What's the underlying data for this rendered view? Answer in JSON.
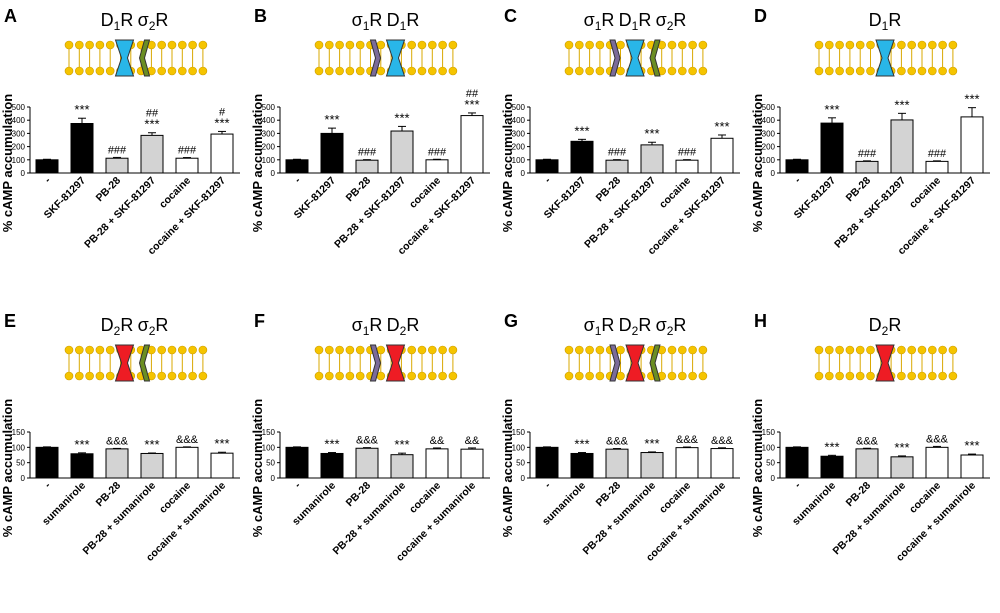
{
  "figure": {
    "ylabel": "% cAMP accumulation",
    "colors": {
      "black": "#000000",
      "grey": "#d3d3d3",
      "white": "#ffffff",
      "D1": "#29b6e8",
      "D2": "#ee1c24",
      "s1": "#7b6b9a",
      "s2": "#6b8e23",
      "lipid": "#f5c400"
    }
  },
  "chart_data": [
    {
      "panel": "A",
      "type": "bar",
      "receptors": [
        "D1R",
        "σ2R"
      ],
      "ylim": [
        0,
        500
      ],
      "yticks": [
        0,
        100,
        200,
        300,
        400,
        500
      ],
      "categories": [
        "-",
        "SKF-81297",
        "PB-28",
        "PB-28 + SKF-81297",
        "cocaine",
        "cocaine + SKF-81297"
      ],
      "values": [
        100,
        375,
        112,
        285,
        112,
        295
      ],
      "errors": [
        4,
        40,
        6,
        20,
        5,
        20
      ],
      "colors": [
        "black",
        "black",
        "grey",
        "grey",
        "white",
        "white"
      ],
      "annotations": [
        "",
        "***",
        "###",
        "##\n***",
        "###",
        "#\n***"
      ]
    },
    {
      "panel": "B",
      "type": "bar",
      "receptors": [
        "σ1R",
        "D1R"
      ],
      "ylim": [
        0,
        500
      ],
      "yticks": [
        0,
        100,
        200,
        300,
        400,
        500
      ],
      "categories": [
        "-",
        "SKF-81297",
        "PB-28",
        "PB-28 + SKF-81297",
        "cocaine",
        "cocaine + SKF-81297"
      ],
      "values": [
        100,
        300,
        97,
        318,
        100,
        435
      ],
      "errors": [
        4,
        40,
        4,
        35,
        4,
        20
      ],
      "colors": [
        "black",
        "black",
        "grey",
        "grey",
        "white",
        "white"
      ],
      "annotations": [
        "",
        "***",
        "###",
        "***",
        "###",
        "##\n***"
      ]
    },
    {
      "panel": "C",
      "type": "bar",
      "receptors": [
        "σ1R",
        "D1R",
        "σ2R"
      ],
      "ylim": [
        0,
        500
      ],
      "yticks": [
        0,
        100,
        200,
        300,
        400,
        500
      ],
      "categories": [
        "-",
        "SKF-81297",
        "PB-28",
        "PB-28 + SKF-81297",
        "cocaine",
        "cocaine + SKF-81297"
      ],
      "values": [
        100,
        240,
        97,
        213,
        97,
        263
      ],
      "errors": [
        4,
        15,
        4,
        20,
        4,
        25
      ],
      "colors": [
        "black",
        "black",
        "grey",
        "grey",
        "white",
        "white"
      ],
      "annotations": [
        "",
        "***",
        "###",
        "***",
        "###",
        "***"
      ]
    },
    {
      "panel": "D",
      "type": "bar",
      "receptors": [
        "D1R"
      ],
      "ylim": [
        0,
        500
      ],
      "yticks": [
        0,
        100,
        200,
        300,
        400,
        500
      ],
      "categories": [
        "-",
        "SKF-81297",
        "PB-28",
        "PB-28 + SKF-81297",
        "cocaine",
        "cocaine + SKF-81297"
      ],
      "values": [
        100,
        378,
        88,
        402,
        88,
        425
      ],
      "errors": [
        4,
        40,
        4,
        50,
        4,
        70
      ],
      "colors": [
        "black",
        "black",
        "grey",
        "grey",
        "white",
        "white"
      ],
      "annotations": [
        "",
        "***",
        "###",
        "***",
        "###",
        "***"
      ]
    },
    {
      "panel": "E",
      "type": "bar",
      "receptors": [
        "D2R",
        "σ2R"
      ],
      "ylim": [
        0,
        150
      ],
      "yticks": [
        0,
        50,
        100,
        150
      ],
      "categories": [
        "-",
        "sumanirole",
        "PB-28",
        "PB-28 + sumanirole",
        "cocaine",
        "cocaine + sumanirole"
      ],
      "values": [
        100,
        79,
        95,
        80,
        100,
        81
      ],
      "errors": [
        1.5,
        3,
        1.5,
        1.5,
        1.5,
        3
      ],
      "colors": [
        "black",
        "black",
        "grey",
        "grey",
        "white",
        "white"
      ],
      "annotations": [
        "",
        "***",
        "&&&",
        "***",
        "&&&",
        "***"
      ]
    },
    {
      "panel": "F",
      "type": "bar",
      "receptors": [
        "σ1R",
        "D2R"
      ],
      "ylim": [
        0,
        150
      ],
      "yticks": [
        0,
        50,
        100,
        150
      ],
      "categories": [
        "-",
        "sumanirole",
        "PB-28",
        "PB-28 + sumanirole",
        "cocaine",
        "cocaine + sumanirole"
      ],
      "values": [
        100,
        80,
        97,
        76,
        95,
        94
      ],
      "errors": [
        1.5,
        3,
        2,
        5,
        3,
        4
      ],
      "colors": [
        "black",
        "black",
        "grey",
        "grey",
        "white",
        "white"
      ],
      "annotations": [
        "",
        "***",
        "&&&",
        "***",
        "&&",
        "&&"
      ]
    },
    {
      "panel": "G",
      "type": "bar",
      "receptors": [
        "σ1R",
        "D2R",
        "σ2R"
      ],
      "ylim": [
        0,
        150
      ],
      "yticks": [
        0,
        50,
        100,
        150
      ],
      "categories": [
        "-",
        "sumanirole",
        "PB-28",
        "PB-28 + sumanirole",
        "cocaine",
        "cocaine + sumanirole"
      ],
      "values": [
        100,
        80,
        94,
        83,
        99,
        96
      ],
      "errors": [
        1.5,
        3,
        2,
        2,
        2,
        2.5
      ],
      "colors": [
        "black",
        "black",
        "grey",
        "grey",
        "white",
        "white"
      ],
      "annotations": [
        "",
        "***",
        "&&&",
        "***",
        "&&&",
        "&&&"
      ]
    },
    {
      "panel": "H",
      "type": "bar",
      "receptors": [
        "D2R"
      ],
      "ylim": [
        0,
        150
      ],
      "yticks": [
        0,
        50,
        100,
        150
      ],
      "categories": [
        "-",
        "sumanirole",
        "PB-28",
        "PB-28 + sumanirole",
        "cocaine",
        "cocaine + sumanirole"
      ],
      "values": [
        100,
        71,
        95,
        69,
        100,
        75
      ],
      "errors": [
        1.5,
        3,
        2,
        3,
        3,
        3
      ],
      "colors": [
        "black",
        "black",
        "grey",
        "grey",
        "white",
        "white"
      ],
      "annotations": [
        "",
        "***",
        "&&&",
        "***",
        "&&&",
        "***"
      ]
    }
  ]
}
